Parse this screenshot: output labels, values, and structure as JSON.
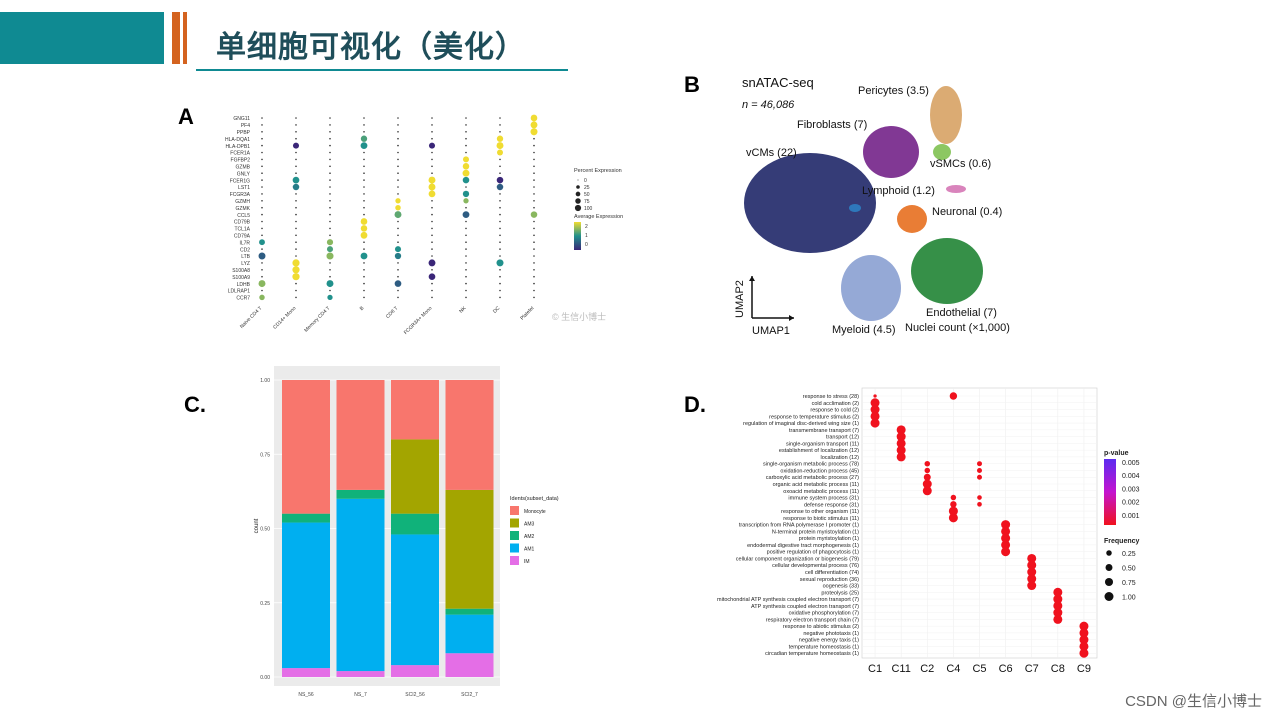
{
  "title": "单细胞可视化（美化）",
  "footer": "CSDN @生信小博士",
  "labels": {
    "a": "A",
    "b": "B",
    "c": "C.",
    "d": "D."
  },
  "colors": {
    "teal": "#0f8a92",
    "orange": "#d4631f"
  },
  "chart_data": [
    {
      "id": "A",
      "type": "scatter",
      "subtype": "dotplot",
      "watermark": "生信小博士",
      "genes_top_to_bottom": [
        "GNG11",
        "PF4",
        "PPBP",
        "HLA-DQA1",
        "HLA-DPB1",
        "FCER1A",
        "FGFBP2",
        "GZMB",
        "GNLY",
        "FCER1G",
        "LST1",
        "FCGR3A",
        "GZMH",
        "GZMK",
        "CCL5",
        "CD79B",
        "TCL1A",
        "CD79A",
        "IL7R",
        "CD2",
        "LTB",
        "LYZ",
        "S100A8",
        "S100A9",
        "LDHB",
        "LDLRAP1",
        "CCR7"
      ],
      "clusters": [
        "Naive CD4 T",
        "CD14+ Mono",
        "Memory CD4 T",
        "B",
        "CD8 T",
        "FCGR3A+ Mono",
        "NK",
        "DC",
        "Platelet"
      ],
      "legend_size_title": "Percent Expression",
      "legend_size_values": [
        "0",
        "25",
        "50",
        "75",
        "100"
      ],
      "legend_color_title": "Average Expression",
      "legend_color_ticks": [
        "2",
        "1",
        "0"
      ],
      "highlights": [
        {
          "gene": "GNG11",
          "cluster": "Platelet",
          "pct": 80,
          "avg": 2
        },
        {
          "gene": "PF4",
          "cluster": "Platelet",
          "pct": 90,
          "avg": 2
        },
        {
          "gene": "PPBP",
          "cluster": "Platelet",
          "pct": 95,
          "avg": 2
        },
        {
          "gene": "HLA-DQA1",
          "cluster": "B",
          "pct": 70,
          "avg": 1.2
        },
        {
          "gene": "HLA-DQA1",
          "cluster": "DC",
          "pct": 70,
          "avg": 2
        },
        {
          "gene": "HLA-DPB1",
          "cluster": "B",
          "pct": 85,
          "avg": 1
        },
        {
          "gene": "HLA-DPB1",
          "cluster": "DC",
          "pct": 90,
          "avg": 2
        },
        {
          "gene": "HLA-DPB1",
          "cluster": "CD14+ Mono",
          "pct": 60,
          "avg": 0
        },
        {
          "gene": "HLA-DPB1",
          "cluster": "FCGR3A+ Mono",
          "pct": 60,
          "avg": 0
        },
        {
          "gene": "FCER1A",
          "cluster": "DC",
          "pct": 60,
          "avg": 2
        },
        {
          "gene": "FGFBP2",
          "cluster": "NK",
          "pct": 60,
          "avg": 2
        },
        {
          "gene": "GZMB",
          "cluster": "NK",
          "pct": 75,
          "avg": 2
        },
        {
          "gene": "GNLY",
          "cluster": "NK",
          "pct": 90,
          "avg": 2
        },
        {
          "gene": "FCER1G",
          "cluster": "CD14+ Mono",
          "pct": 80,
          "avg": 1
        },
        {
          "gene": "FCER1G",
          "cluster": "FCGR3A+ Mono",
          "pct": 90,
          "avg": 2
        },
        {
          "gene": "FCER1G",
          "cluster": "NK",
          "pct": 75,
          "avg": 1
        },
        {
          "gene": "FCER1G",
          "cluster": "DC",
          "pct": 75,
          "avg": 0
        },
        {
          "gene": "LST1",
          "cluster": "CD14+ Mono",
          "pct": 75,
          "avg": 0.8
        },
        {
          "gene": "LST1",
          "cluster": "FCGR3A+ Mono",
          "pct": 90,
          "avg": 2
        },
        {
          "gene": "LST1",
          "cluster": "DC",
          "pct": 75,
          "avg": 0.5
        },
        {
          "gene": "FCGR3A",
          "cluster": "FCGR3A+ Mono",
          "pct": 85,
          "avg": 2
        },
        {
          "gene": "FCGR3A",
          "cluster": "NK",
          "pct": 70,
          "avg": 1
        },
        {
          "gene": "GZMH",
          "cluster": "CD8 T",
          "pct": 40,
          "avg": 2
        },
        {
          "gene": "GZMH",
          "cluster": "NK",
          "pct": 40,
          "avg": 1.5
        },
        {
          "gene": "GZMK",
          "cluster": "CD8 T",
          "pct": 45,
          "avg": 2
        },
        {
          "gene": "CCL5",
          "cluster": "CD8 T",
          "pct": 90,
          "avg": 1.3
        },
        {
          "gene": "CCL5",
          "cluster": "NK",
          "pct": 85,
          "avg": 0.5
        },
        {
          "gene": "CCL5",
          "cluster": "Platelet",
          "pct": 75,
          "avg": 1.5
        },
        {
          "gene": "CD79B",
          "cluster": "B",
          "pct": 80,
          "avg": 2
        },
        {
          "gene": "TCL1A",
          "cluster": "B",
          "pct": 75,
          "avg": 2
        },
        {
          "gene": "CD79A",
          "cluster": "B",
          "pct": 85,
          "avg": 2
        },
        {
          "gene": "IL7R",
          "cluster": "Naive CD4 T",
          "pct": 55,
          "avg": 1
        },
        {
          "gene": "IL7R",
          "cluster": "Memory CD4 T",
          "pct": 65,
          "avg": 1.5
        },
        {
          "gene": "CD2",
          "cluster": "Memory CD4 T",
          "pct": 60,
          "avg": 1.2
        },
        {
          "gene": "CD2",
          "cluster": "CD8 T",
          "pct": 60,
          "avg": 1
        },
        {
          "gene": "LTB",
          "cluster": "Naive CD4 T",
          "pct": 90,
          "avg": 0.5
        },
        {
          "gene": "LTB",
          "cluster": "Memory CD4 T",
          "pct": 95,
          "avg": 1.5
        },
        {
          "gene": "LTB",
          "cluster": "B",
          "pct": 85,
          "avg": 1
        },
        {
          "gene": "LTB",
          "cluster": "CD8 T",
          "pct": 70,
          "avg": 0.8
        },
        {
          "gene": "LYZ",
          "cluster": "CD14+ Mono",
          "pct": 100,
          "avg": 2
        },
        {
          "gene": "LYZ",
          "cluster": "DC",
          "pct": 95,
          "avg": 1
        },
        {
          "gene": "LYZ",
          "cluster": "FCGR3A+ Mono",
          "pct": 90,
          "avg": 0
        },
        {
          "gene": "S100A8",
          "cluster": "CD14+ Mono",
          "pct": 100,
          "avg": 2
        },
        {
          "gene": "S100A9",
          "cluster": "CD14+ Mono",
          "pct": 100,
          "avg": 2
        },
        {
          "gene": "S100A9",
          "cluster": "FCGR3A+ Mono",
          "pct": 80,
          "avg": 0
        },
        {
          "gene": "LDHB",
          "cluster": "Naive CD4 T",
          "pct": 90,
          "avg": 1.5
        },
        {
          "gene": "LDHB",
          "cluster": "Memory CD4 T",
          "pct": 90,
          "avg": 1
        },
        {
          "gene": "LDHB",
          "cluster": "CD8 T",
          "pct": 80,
          "avg": 0.5
        },
        {
          "gene": "CCR7",
          "cluster": "Naive CD4 T",
          "pct": 45,
          "avg": 1.5
        },
        {
          "gene": "CCR7",
          "cluster": "Memory CD4 T",
          "pct": 40,
          "avg": 1
        }
      ]
    },
    {
      "id": "B",
      "type": "scatter",
      "subtype": "umap",
      "title": "snATAC-seq",
      "subtitle": "n = 46,086",
      "xlabel": "UMAP1",
      "ylabel": "UMAP2",
      "clusters": [
        {
          "name": "vCMs (22)",
          "color": "#2a3170"
        },
        {
          "name": "Pericytes (3.5)",
          "color": "#d9a66b"
        },
        {
          "name": "Fibroblasts (7)",
          "color": "#7a2d8e"
        },
        {
          "name": "vSMCs (0.6)",
          "color": "#86c45a"
        },
        {
          "name": "Lymphoid (1.2)",
          "color": "#2e7bbf"
        },
        {
          "name": "Neuronal (0.4)",
          "color": "#d77db8"
        },
        {
          "name": "Myeloid (4.5)",
          "color": "#8fa4d4"
        },
        {
          "name": "Endothelial (7)",
          "color": "#2b8a3e"
        },
        {
          "name": "",
          "color": "#e8762a"
        }
      ],
      "caption": "Nuclei count (×1,000)"
    },
    {
      "id": "C",
      "type": "bar",
      "stacked": true,
      "categories": [
        "NS_56",
        "NS_7",
        "SCI2_56",
        "SCI2_7"
      ],
      "xlabel": "",
      "ylabel": "count",
      "ylim": [
        0,
        1
      ],
      "yticks": [
        "0.00",
        "0.25",
        "0.50",
        "0.75",
        "1.00"
      ],
      "legend_title": "Idents(subset_data)",
      "series": [
        {
          "name": "IM",
          "color": "#e46ee6",
          "values": [
            0.03,
            0.02,
            0.04,
            0.08
          ]
        },
        {
          "name": "AM1",
          "color": "#00aff0",
          "values": [
            0.49,
            0.58,
            0.44,
            0.13
          ]
        },
        {
          "name": "AM2",
          "color": "#10b27a",
          "values": [
            0.03,
            0.03,
            0.07,
            0.02
          ]
        },
        {
          "name": "AM3",
          "color": "#a3a500",
          "values": [
            0,
            0,
            0.25,
            0.4
          ]
        },
        {
          "name": "Monocyte",
          "color": "#f8766d",
          "values": [
            0.45,
            0.37,
            0.2,
            0.37
          ]
        }
      ]
    },
    {
      "id": "D",
      "type": "scatter",
      "subtype": "go-dotplot",
      "clusters": [
        "C1",
        "C11",
        "C2",
        "C4",
        "C5",
        "C6",
        "C7",
        "C8",
        "C9"
      ],
      "legend_color_title": "p-value",
      "legend_color_ticks": [
        "0.005",
        "0.004",
        "0.003",
        "0.002",
        "0.001"
      ],
      "legend_size_title": "Frequency",
      "legend_size_values": [
        "0.25",
        "0.50",
        "0.75",
        "1.00"
      ],
      "terms": [
        {
          "label": "response to stress (28)",
          "cluster": "C4",
          "freq": 0.6
        },
        {
          "label": "cold acclimation (2)",
          "cluster": "C1",
          "freq": 1
        },
        {
          "label": "response to cold (2)",
          "cluster": "C1",
          "freq": 1
        },
        {
          "label": "response to temperature stimulus (2)",
          "cluster": "C1",
          "freq": 1
        },
        {
          "label": "regulation of imaginal disc-derived wing size (1)",
          "cluster": "C1",
          "freq": 1
        },
        {
          "label": "transmembrane transport (7)",
          "cluster": "C11",
          "freq": 1
        },
        {
          "label": "transport (12)",
          "cluster": "C11",
          "freq": 1
        },
        {
          "label": "single-organism transport (11)",
          "cluster": "C11",
          "freq": 1
        },
        {
          "label": "establishment of localization (12)",
          "cluster": "C11",
          "freq": 1
        },
        {
          "label": "localization (12)",
          "cluster": "C11",
          "freq": 1
        },
        {
          "label": "single-organism metabolic process (78)",
          "cluster": "C2",
          "freq": 0.25
        },
        {
          "label": "oxidation-reduction process (45)",
          "cluster": "C2",
          "freq": 0.25
        },
        {
          "label": "carboxylic acid metabolic process (27)",
          "cluster": "C2",
          "freq": 0.5
        },
        {
          "label": "organic acid metabolic process (11)",
          "cluster": "C2",
          "freq": 1
        },
        {
          "label": "oxoacid metabolic process (11)",
          "cluster": "C2",
          "freq": 1
        },
        {
          "label": "immune system process (31)",
          "cluster": "C4",
          "freq": 0.25
        },
        {
          "label": "defense response (31)",
          "cluster": "C4",
          "freq": 0.4
        },
        {
          "label": "response to other organism (11)",
          "cluster": "C4",
          "freq": 1
        },
        {
          "label": "response to biotic stimulus (11)",
          "cluster": "C4",
          "freq": 1
        },
        {
          "label": "transcription from RNA polymerase I promoter (1)",
          "cluster": "C6",
          "freq": 1
        },
        {
          "label": "N-terminal protein myristoylation (1)",
          "cluster": "C6",
          "freq": 1
        },
        {
          "label": "protein myristoylation (1)",
          "cluster": "C6",
          "freq": 1
        },
        {
          "label": "endodermal digestive tract morphogenesis (1)",
          "cluster": "C6",
          "freq": 1
        },
        {
          "label": "positive regulation of phagocytosis (1)",
          "cluster": "C6",
          "freq": 1
        },
        {
          "label": "cellular component organization or biogenesis (79)",
          "cluster": "C7",
          "freq": 1
        },
        {
          "label": "cellular developmental process (76)",
          "cluster": "C7",
          "freq": 1
        },
        {
          "label": "cell differentiation (74)",
          "cluster": "C7",
          "freq": 1
        },
        {
          "label": "sexual reproduction (36)",
          "cluster": "C7",
          "freq": 1
        },
        {
          "label": "oogenesis (33)",
          "cluster": "C7",
          "freq": 1
        },
        {
          "label": "proteolysis (25)",
          "cluster": "C8",
          "freq": 1
        },
        {
          "label": "mitochondrial ATP synthesis coupled electron transport (7)",
          "cluster": "C8",
          "freq": 1
        },
        {
          "label": "ATP synthesis coupled electron transport (7)",
          "cluster": "C8",
          "freq": 1
        },
        {
          "label": "oxidative phosphorylation (7)",
          "cluster": "C8",
          "freq": 1
        },
        {
          "label": "respiratory electron transport chain (7)",
          "cluster": "C8",
          "freq": 1
        },
        {
          "label": "response to abiotic stimulus (2)",
          "cluster": "C9",
          "freq": 1
        },
        {
          "label": "negative phototaxis (1)",
          "cluster": "C9",
          "freq": 1
        },
        {
          "label": "negative energy taxis (1)",
          "cluster": "C9",
          "freq": 1
        },
        {
          "label": "temperature homeostasis (1)",
          "cluster": "C9",
          "freq": 1
        },
        {
          "label": "circadian temperature homeostasis (1)",
          "cluster": "C9",
          "freq": 1
        }
      ],
      "extra_points": [
        {
          "term_index": 10,
          "cluster": "C5",
          "freq": 0.5
        },
        {
          "term_index": 11,
          "cluster": "C5",
          "freq": 0.5
        },
        {
          "term_index": 12,
          "cluster": "C5",
          "freq": 0.5
        },
        {
          "term_index": 15,
          "cluster": "C5",
          "freq": 0.4
        },
        {
          "term_index": 16,
          "cluster": "C5",
          "freq": 0.4
        },
        {
          "term_index": 0,
          "cluster": "C1",
          "freq": 0.1
        }
      ]
    }
  ]
}
